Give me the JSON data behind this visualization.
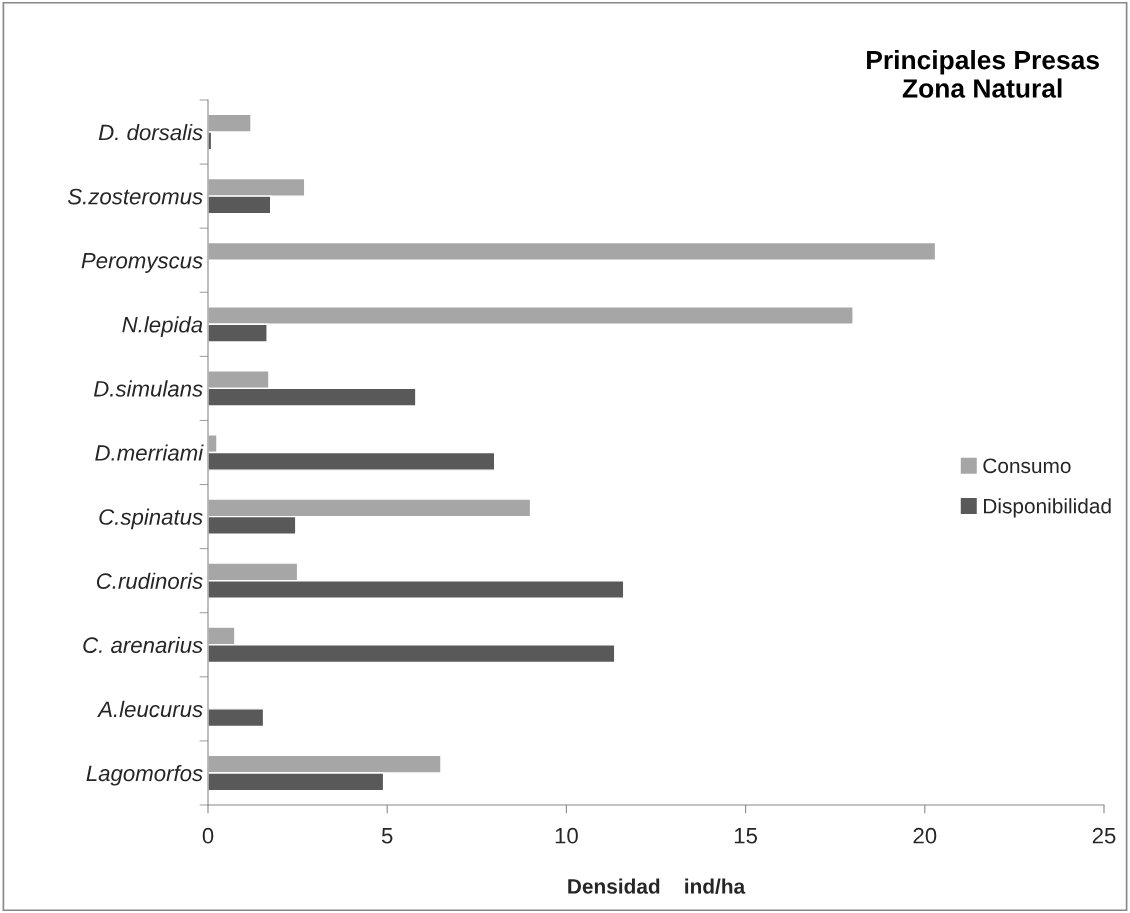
{
  "chart_data": {
    "type": "bar",
    "orientation": "horizontal",
    "title": "Principales Presas\nZona Natural",
    "xlabel": "Densidad    ind/ha",
    "categories": [
      "D. dorsalis",
      "S.zosteromus",
      "Peromyscus",
      "N.lepida",
      "D.simulans",
      "D.merriami",
      "C.spinatus",
      "C.rudinoris",
      "C. arenarius",
      "A.leucurus",
      "Lagomorfos"
    ],
    "series": [
      {
        "name": "Consumo",
        "color": "#a6a6a6",
        "values": [
          1.2,
          2.7,
          20.3,
          18.0,
          1.7,
          0.25,
          9.0,
          2.5,
          0.75,
          null,
          6.5
        ]
      },
      {
        "name": "Disponibilidad",
        "color": "#595959",
        "values": [
          0.1,
          1.75,
          null,
          1.65,
          5.8,
          8.0,
          2.45,
          11.6,
          11.35,
          1.55,
          4.9
        ]
      }
    ],
    "xlim": [
      0,
      25
    ],
    "xticks": [
      0,
      5,
      10,
      15,
      20,
      25
    ],
    "grid": false,
    "legend": "right"
  }
}
